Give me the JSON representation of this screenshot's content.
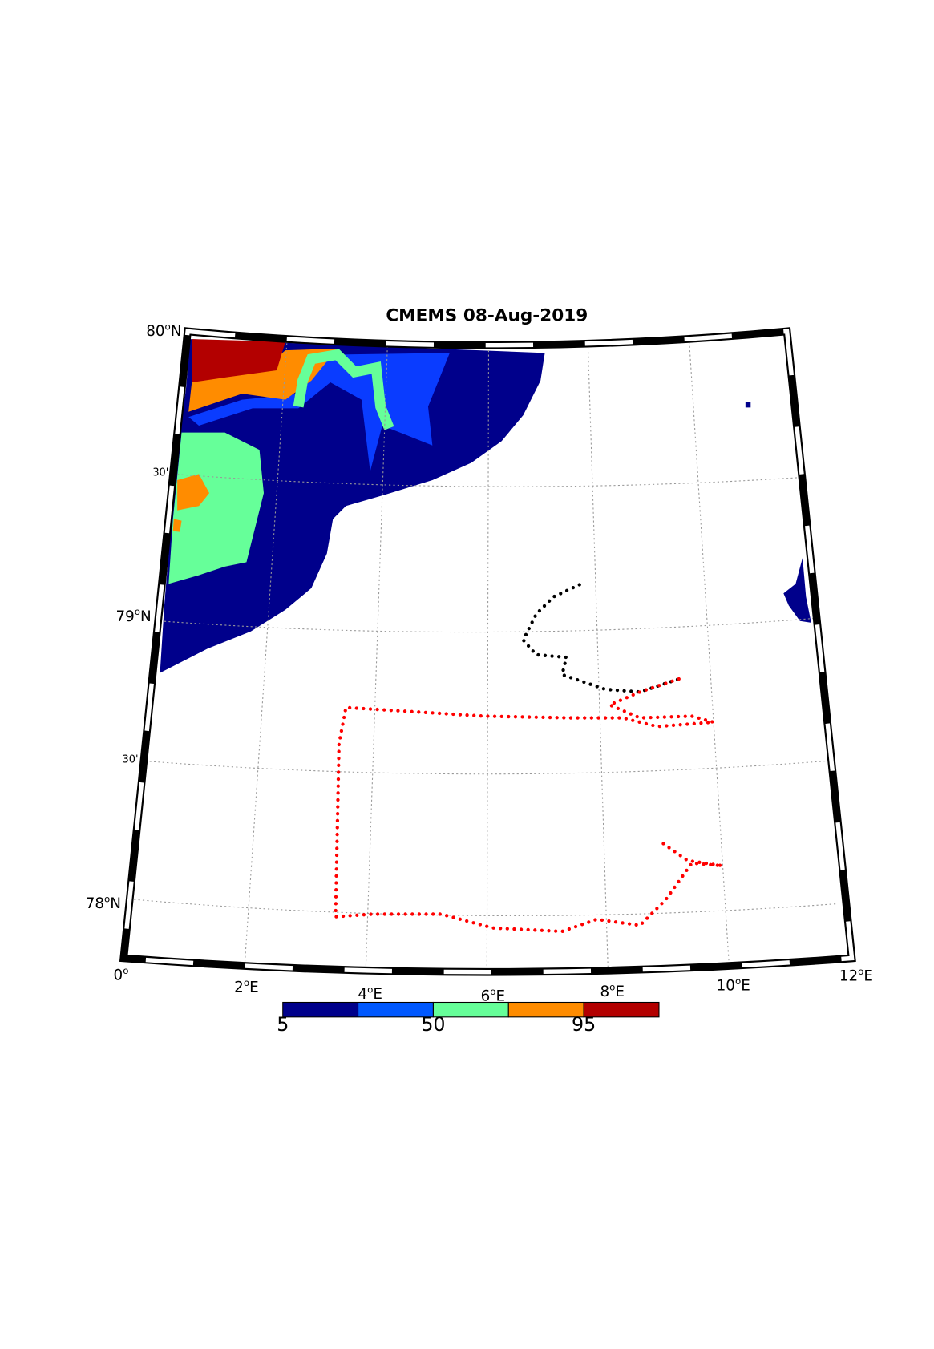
{
  "title": "CMEMS 08-Aug-2019",
  "latitude_labels": [
    {
      "number": "80",
      "degree": "o",
      "hemisphere": "N"
    },
    {
      "minutes": "30'"
    },
    {
      "number": "79",
      "degree": "o",
      "hemisphere": "N"
    },
    {
      "minutes": "30'"
    },
    {
      "number": "78",
      "degree": "o",
      "hemisphere": "N"
    }
  ],
  "longitude_labels": [
    {
      "number": "0",
      "degree": "o",
      "hemisphere": ""
    },
    {
      "number": "2",
      "degree": "o",
      "hemisphere": "E"
    },
    {
      "number": "4",
      "degree": "o",
      "hemisphere": "E"
    },
    {
      "number": "6",
      "degree": "o",
      "hemisphere": "E"
    },
    {
      "number": "8",
      "degree": "o",
      "hemisphere": "E"
    },
    {
      "number": "10",
      "degree": "o",
      "hemisphere": "E"
    },
    {
      "number": "12",
      "degree": "o",
      "hemisphere": "E"
    }
  ],
  "colorbar": {
    "colors": [
      "#00008b",
      "#0058ff",
      "#66ff99",
      "#ff8c00",
      "#b30000"
    ],
    "ticks": [
      5,
      50,
      95
    ]
  }
}
